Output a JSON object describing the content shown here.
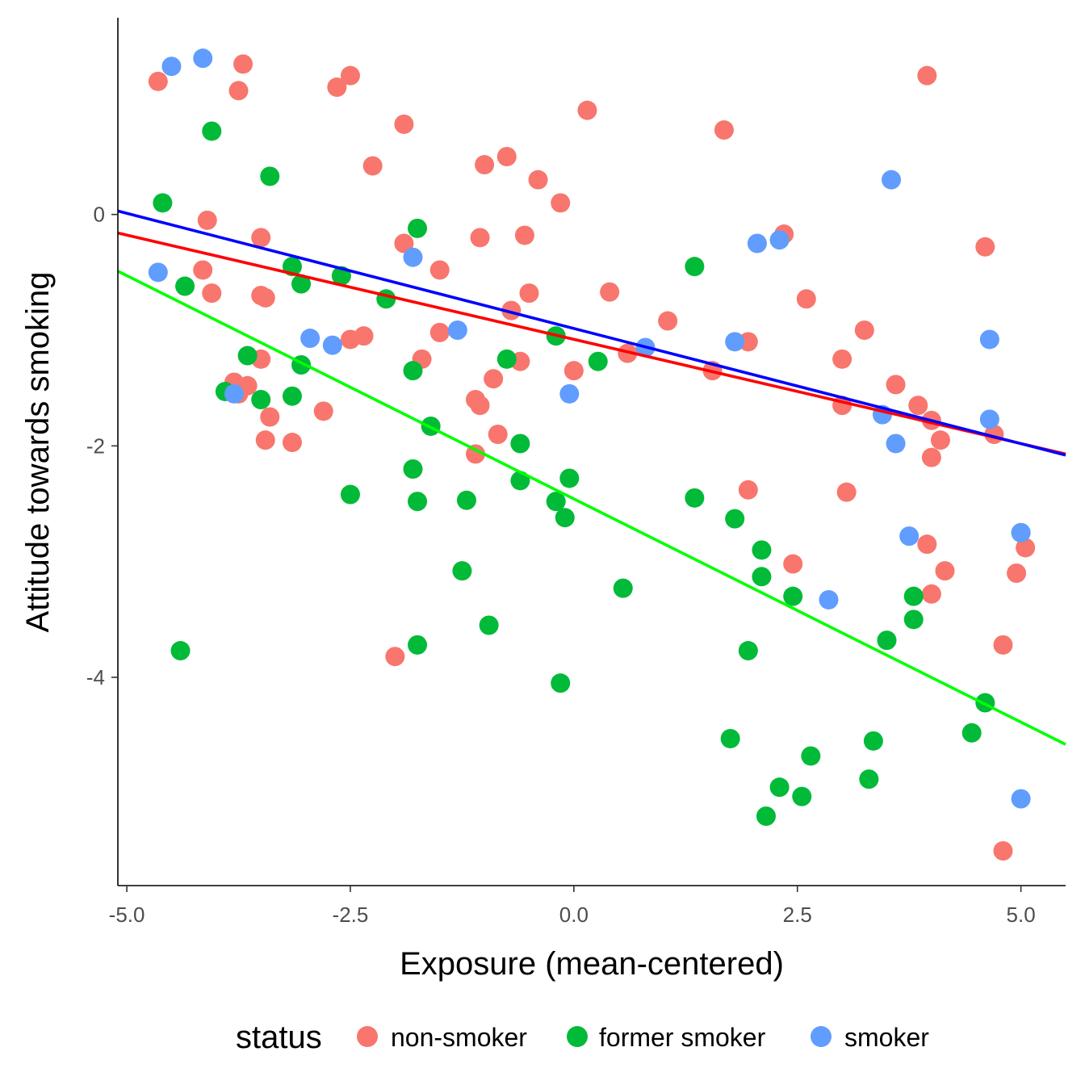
{
  "chart_data": {
    "type": "scatter",
    "title": "",
    "xlabel": "Exposure (mean-centered)",
    "ylabel": "Attitude towards smoking",
    "xlim": [
      -5.1,
      5.5
    ],
    "ylim": [
      -5.8,
      1.7
    ],
    "x_ticks": [
      -5.0,
      -2.5,
      0.0,
      2.5,
      5.0
    ],
    "x_tick_labels": [
      "-5.0",
      "-2.5",
      "0.0",
      "2.5",
      "5.0"
    ],
    "y_ticks": [
      0,
      -2,
      -4
    ],
    "y_tick_labels": [
      "0",
      "-2",
      "-4"
    ],
    "grid": false,
    "legend": {
      "title": "status",
      "position": "bottom",
      "entries": [
        {
          "label": "non-smoker",
          "color": "#F8766D"
        },
        {
          "label": "former smoker",
          "color": "#00BA38"
        },
        {
          "label": "smoker",
          "color": "#619CFF"
        }
      ]
    },
    "series": [
      {
        "group": "non-smoker",
        "color": "#F8766D",
        "points": [
          [
            -4.65,
            1.15
          ],
          [
            -3.7,
            1.3
          ],
          [
            -3.75,
            1.07
          ],
          [
            -2.65,
            1.1
          ],
          [
            -2.5,
            1.2
          ],
          [
            3.95,
            1.2
          ],
          [
            -1.9,
            0.78
          ],
          [
            0.15,
            0.9
          ],
          [
            1.68,
            0.73
          ],
          [
            -2.25,
            0.42
          ],
          [
            -1.0,
            0.43
          ],
          [
            -0.75,
            0.5
          ],
          [
            -0.4,
            0.3
          ],
          [
            -0.15,
            0.1
          ],
          [
            -4.1,
            -0.05
          ],
          [
            -3.5,
            -0.2
          ],
          [
            -1.9,
            -0.25
          ],
          [
            -1.05,
            -0.2
          ],
          [
            -0.55,
            -0.18
          ],
          [
            2.35,
            -0.17
          ],
          [
            4.6,
            -0.28
          ],
          [
            -4.15,
            -0.48
          ],
          [
            -1.5,
            -0.48
          ],
          [
            -4.05,
            -0.68
          ],
          [
            -3.5,
            -0.7
          ],
          [
            -3.45,
            -0.72
          ],
          [
            -0.5,
            -0.68
          ],
          [
            0.4,
            -0.67
          ],
          [
            2.6,
            -0.73
          ],
          [
            -0.7,
            -0.83
          ],
          [
            1.05,
            -0.92
          ],
          [
            -2.35,
            -1.05
          ],
          [
            -2.5,
            -1.08
          ],
          [
            -1.5,
            -1.02
          ],
          [
            3.25,
            -1.0
          ],
          [
            1.95,
            -1.1
          ],
          [
            0.6,
            -1.2
          ],
          [
            -3.5,
            -1.25
          ],
          [
            -1.7,
            -1.25
          ],
          [
            -0.6,
            -1.27
          ],
          [
            3.0,
            -1.25
          ],
          [
            1.55,
            -1.35
          ],
          [
            0.0,
            -1.35
          ],
          [
            -0.9,
            -1.42
          ],
          [
            3.6,
            -1.47
          ],
          [
            -3.8,
            -1.45
          ],
          [
            -3.65,
            -1.48
          ],
          [
            -3.75,
            -1.55
          ],
          [
            -1.1,
            -1.6
          ],
          [
            -1.05,
            -1.65
          ],
          [
            3.0,
            -1.65
          ],
          [
            3.85,
            -1.65
          ],
          [
            -2.8,
            -1.7
          ],
          [
            -3.4,
            -1.75
          ],
          [
            4.0,
            -1.78
          ],
          [
            -0.85,
            -1.9
          ],
          [
            4.7,
            -1.9
          ],
          [
            -3.45,
            -1.95
          ],
          [
            -3.15,
            -1.97
          ],
          [
            4.1,
            -1.95
          ],
          [
            -1.1,
            -2.07
          ],
          [
            4.0,
            -2.1
          ],
          [
            1.95,
            -2.38
          ],
          [
            3.05,
            -2.4
          ],
          [
            3.95,
            -2.85
          ],
          [
            5.05,
            -2.88
          ],
          [
            2.45,
            -3.02
          ],
          [
            4.15,
            -3.08
          ],
          [
            4.95,
            -3.1
          ],
          [
            4.0,
            -3.28
          ],
          [
            4.8,
            -3.72
          ],
          [
            -2.0,
            -3.82
          ],
          [
            4.8,
            -5.5
          ]
        ]
      },
      {
        "group": "former smoker",
        "color": "#00BA38",
        "points": [
          [
            -4.05,
            0.72
          ],
          [
            -3.4,
            0.33
          ],
          [
            -4.6,
            0.1
          ],
          [
            -1.75,
            -0.12
          ],
          [
            1.35,
            -0.45
          ],
          [
            -3.15,
            -0.45
          ],
          [
            -2.6,
            -0.53
          ],
          [
            -4.35,
            -0.62
          ],
          [
            -3.05,
            -0.6
          ],
          [
            -2.1,
            -0.73
          ],
          [
            -0.2,
            -1.05
          ],
          [
            -0.75,
            -1.25
          ],
          [
            0.27,
            -1.27
          ],
          [
            -3.65,
            -1.22
          ],
          [
            -3.05,
            -1.3
          ],
          [
            -1.8,
            -1.35
          ],
          [
            -3.9,
            -1.53
          ],
          [
            -3.15,
            -1.57
          ],
          [
            -3.5,
            -1.6
          ],
          [
            -1.6,
            -1.83
          ],
          [
            -0.6,
            -1.98
          ],
          [
            -1.8,
            -2.2
          ],
          [
            -0.05,
            -2.28
          ],
          [
            -0.6,
            -2.3
          ],
          [
            -2.5,
            -2.42
          ],
          [
            1.35,
            -2.45
          ],
          [
            -1.75,
            -2.48
          ],
          [
            -1.2,
            -2.47
          ],
          [
            -0.2,
            -2.48
          ],
          [
            -0.1,
            -2.62
          ],
          [
            1.8,
            -2.63
          ],
          [
            5.0,
            -2.75
          ],
          [
            2.1,
            -2.9
          ],
          [
            2.1,
            -3.13
          ],
          [
            -1.25,
            -3.08
          ],
          [
            0.55,
            -3.23
          ],
          [
            2.45,
            -3.3
          ],
          [
            3.8,
            -3.3
          ],
          [
            -0.95,
            -3.55
          ],
          [
            3.8,
            -3.5
          ],
          [
            3.5,
            -3.68
          ],
          [
            -1.75,
            -3.72
          ],
          [
            -4.4,
            -3.77
          ],
          [
            1.95,
            -3.77
          ],
          [
            -0.15,
            -4.05
          ],
          [
            4.6,
            -4.22
          ],
          [
            1.75,
            -4.53
          ],
          [
            4.45,
            -4.48
          ],
          [
            3.35,
            -4.55
          ],
          [
            2.65,
            -4.68
          ],
          [
            3.3,
            -4.88
          ],
          [
            2.3,
            -4.95
          ],
          [
            2.55,
            -5.03
          ],
          [
            2.15,
            -5.2
          ]
        ]
      },
      {
        "group": "smoker",
        "color": "#619CFF",
        "points": [
          [
            -4.5,
            1.28
          ],
          [
            -4.15,
            1.35
          ],
          [
            3.55,
            0.3
          ],
          [
            2.05,
            -0.25
          ],
          [
            2.3,
            -0.22
          ],
          [
            -1.8,
            -0.37
          ],
          [
            -4.65,
            -0.5
          ],
          [
            -1.3,
            -1.0
          ],
          [
            -2.95,
            -1.07
          ],
          [
            -2.7,
            -1.13
          ],
          [
            0.8,
            -1.15
          ],
          [
            1.8,
            -1.1
          ],
          [
            4.65,
            -1.08
          ],
          [
            -0.05,
            -1.55
          ],
          [
            -3.8,
            -1.55
          ],
          [
            3.45,
            -1.73
          ],
          [
            4.65,
            -1.77
          ],
          [
            3.6,
            -1.98
          ],
          [
            3.75,
            -2.78
          ],
          [
            5.0,
            -2.75
          ],
          [
            2.85,
            -3.33
          ],
          [
            5.0,
            -5.05
          ]
        ]
      }
    ],
    "fit_lines": [
      {
        "group": "non-smoker",
        "color": "#FF0000",
        "x": [
          -5.1,
          5.5
        ],
        "y": [
          -0.16,
          -2.07
        ]
      },
      {
        "group": "former smoker",
        "color": "#00FF00",
        "x": [
          -5.1,
          5.5
        ],
        "y": [
          -0.49,
          -4.58
        ]
      },
      {
        "group": "smoker",
        "color": "#0000FF",
        "x": [
          -5.1,
          5.5
        ],
        "y": [
          0.03,
          -2.08
        ]
      }
    ]
  }
}
